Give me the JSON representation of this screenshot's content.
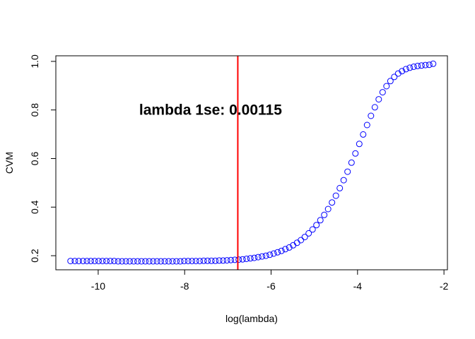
{
  "chart_data": {
    "type": "scatter",
    "title": "",
    "xlabel": "log(lambda)",
    "ylabel": "CVM",
    "xlim": [
      -10.98,
      -1.92
    ],
    "ylim": [
      0.142,
      1.023
    ],
    "x_ticks": [
      -10,
      -8,
      -6,
      -4,
      -2
    ],
    "y_ticks": [
      0.2,
      0.4,
      0.6,
      0.8,
      1.0
    ],
    "x_tick_labels": [
      "-10",
      "-8",
      "-6",
      "-4",
      "-2"
    ],
    "y_tick_labels": [
      "0.2",
      "0.4",
      "0.6",
      "0.8",
      "1.0"
    ],
    "grid": false,
    "point_color": "#0000ff",
    "vline": {
      "x": -6.77,
      "color": "#ff0000"
    },
    "annotation": {
      "text": "lambda 1se: 0.00115",
      "x": -7.4,
      "y": 0.78
    },
    "series": [
      {
        "x": [
          -10.64,
          -10.54,
          -10.45,
          -10.35,
          -10.26,
          -10.17,
          -10.08,
          -9.99,
          -9.9,
          -9.81,
          -9.72,
          -9.63,
          -9.54,
          -9.45,
          -9.36,
          -9.27,
          -9.18,
          -9.09,
          -9.0,
          -8.91,
          -8.82,
          -8.73,
          -8.64,
          -8.55,
          -8.46,
          -8.37,
          -8.28,
          -8.19,
          -8.1,
          -8.01,
          -7.92,
          -7.83,
          -7.74,
          -7.65,
          -7.56,
          -7.47,
          -7.38,
          -7.29,
          -7.2,
          -7.11,
          -7.02,
          -6.93,
          -6.84,
          -6.75,
          -6.66,
          -6.57,
          -6.48,
          -6.39,
          -6.3,
          -6.21,
          -6.12,
          -6.03,
          -5.94,
          -5.85,
          -5.76,
          -5.67,
          -5.58,
          -5.49,
          -5.4,
          -5.31,
          -5.22,
          -5.13,
          -5.04,
          -4.95,
          -4.86,
          -4.77,
          -4.68,
          -4.59,
          -4.5,
          -4.41,
          -4.32,
          -4.23,
          -4.14,
          -4.05,
          -3.96,
          -3.87,
          -3.78,
          -3.69,
          -3.6,
          -3.51,
          -3.42,
          -3.33,
          -3.24,
          -3.15,
          -3.06,
          -2.97,
          -2.88,
          -2.79,
          -2.7,
          -2.61,
          -2.52,
          -2.43,
          -2.34,
          -2.25
        ],
        "y": [
          0.178,
          0.178,
          0.178,
          0.178,
          0.178,
          0.178,
          0.178,
          0.178,
          0.178,
          0.178,
          0.178,
          0.178,
          0.177,
          0.177,
          0.177,
          0.177,
          0.177,
          0.177,
          0.177,
          0.177,
          0.177,
          0.177,
          0.177,
          0.177,
          0.177,
          0.177,
          0.177,
          0.177,
          0.177,
          0.178,
          0.178,
          0.178,
          0.178,
          0.178,
          0.179,
          0.179,
          0.179,
          0.179,
          0.18,
          0.18,
          0.181,
          0.182,
          0.183,
          0.184,
          0.185,
          0.187,
          0.189,
          0.191,
          0.194,
          0.197,
          0.2,
          0.204,
          0.209,
          0.214,
          0.22,
          0.227,
          0.234,
          0.243,
          0.253,
          0.264,
          0.277,
          0.292,
          0.308,
          0.326,
          0.346,
          0.368,
          0.392,
          0.419,
          0.447,
          0.478,
          0.511,
          0.546,
          0.583,
          0.621,
          0.66,
          0.699,
          0.738,
          0.776,
          0.811,
          0.844,
          0.873,
          0.898,
          0.919,
          0.936,
          0.95,
          0.96,
          0.968,
          0.974,
          0.978,
          0.981,
          0.983,
          0.985,
          0.986,
          0.99
        ]
      }
    ]
  }
}
